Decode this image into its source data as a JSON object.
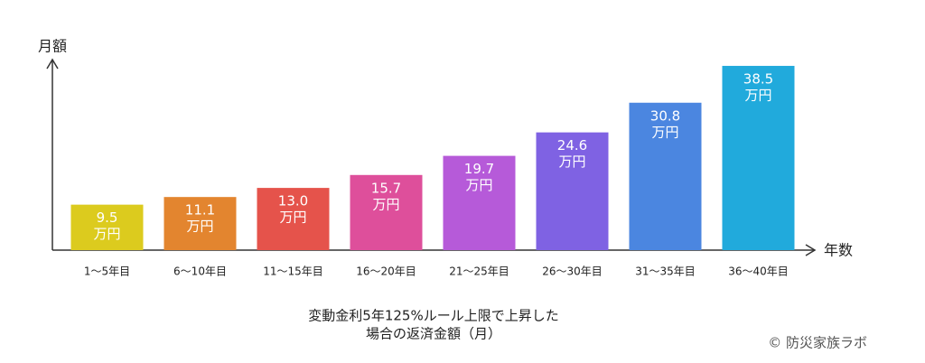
{
  "chart_data": {
    "type": "bar",
    "title": [
      "変動金利5年125%ルール上限で上昇した",
      "場合の返済金額（月）"
    ],
    "y_label": "月額",
    "x_label": "年数",
    "categories": [
      "1～5年目",
      "6～10年目",
      "11～15年目",
      "16～20年目",
      "21～25年目",
      "26～30年目",
      "31～35年目",
      "36～40年目"
    ],
    "values": [
      9.5,
      11.1,
      13.0,
      15.7,
      19.7,
      24.6,
      30.8,
      38.5
    ],
    "value_labels": [
      "9.5",
      "11.1",
      "13.0",
      "15.7",
      "19.7",
      "24.6",
      "30.8",
      "38.5"
    ],
    "unit_label": "万円",
    "colors": [
      "#dccb1e",
      "#e3852f",
      "#e5534b",
      "#de4f9b",
      "#b65ad9",
      "#7f62e3",
      "#4b86e0",
      "#21aadc"
    ],
    "ylim": [
      0,
      40
    ]
  },
  "credit": "© 防災家族ラボ"
}
